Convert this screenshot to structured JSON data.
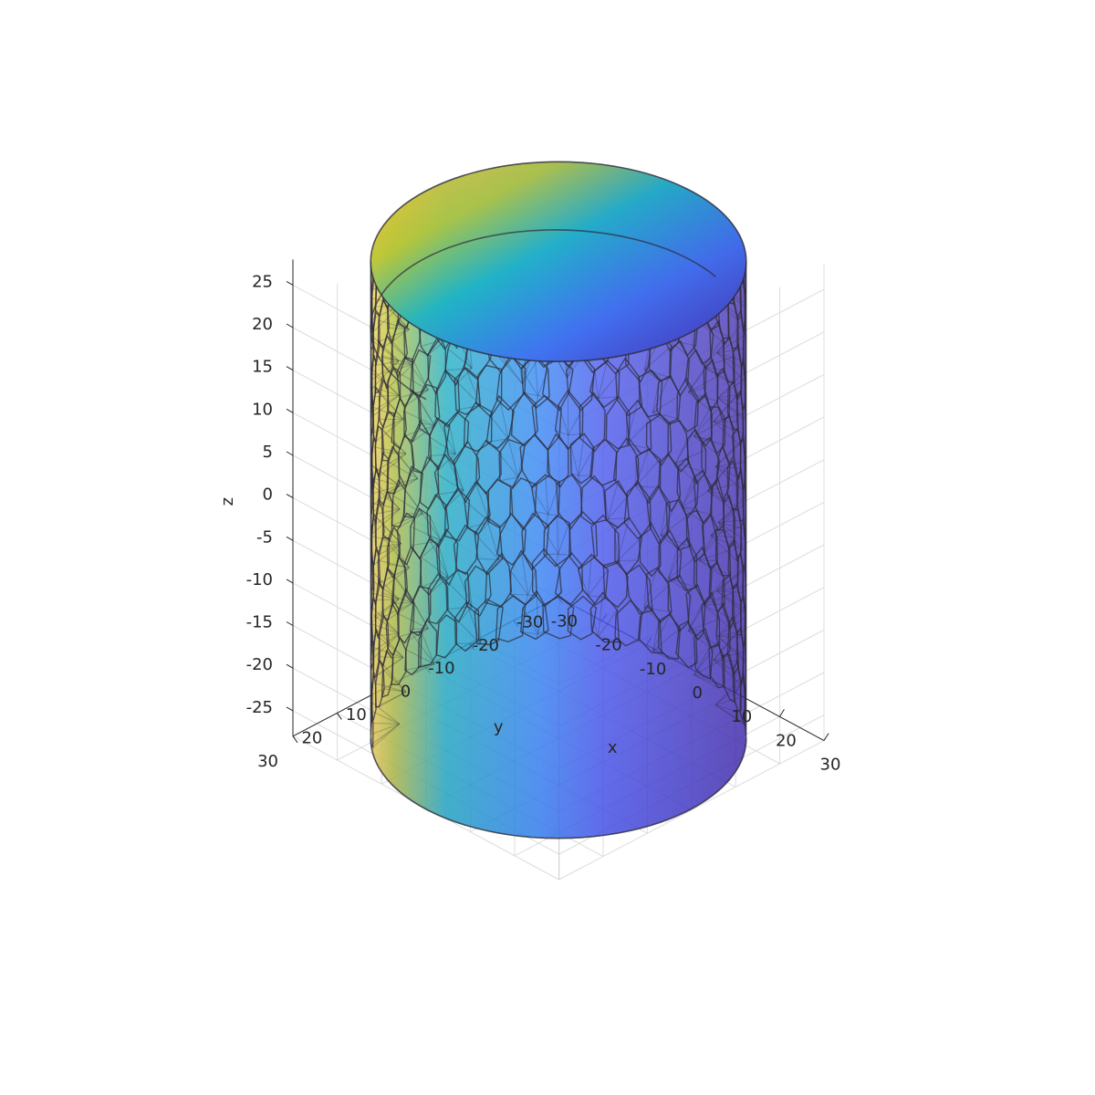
{
  "chart_data": {
    "type": "surface",
    "title": "",
    "shape": "Voronoi-tessellated cylinder (polyhedral cells)",
    "colormap": [
      "#3e26a8",
      "#4354f0",
      "#2e87f8",
      "#17b2c2",
      "#48c86f",
      "#b6c431",
      "#f8bd3d",
      "#f9e626"
    ],
    "axes": {
      "x": {
        "label": "x",
        "range": [
          -30,
          30
        ],
        "ticks": [
          -30,
          -20,
          -10,
          0,
          10,
          20,
          30
        ]
      },
      "y": {
        "label": "y",
        "range": [
          -30,
          30
        ],
        "ticks": [
          -30,
          -20,
          -10,
          0,
          10,
          20,
          30
        ]
      },
      "z": {
        "label": "z",
        "range": [
          -28,
          28
        ],
        "ticks": [
          -25,
          -20,
          -15,
          -10,
          -5,
          0,
          5,
          10,
          15,
          20,
          25
        ]
      }
    },
    "cylinder": {
      "radius": 30,
      "z_min": -28,
      "z_max": 28
    },
    "grid": true,
    "face_alpha": 0.6
  }
}
